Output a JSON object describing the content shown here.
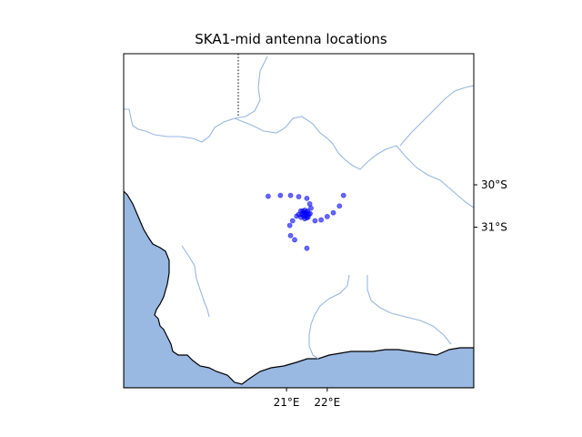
{
  "title": "SKA1-mid antenna locations",
  "map": {
    "x_ticks": [
      {
        "label": "21°E",
        "lon": 21
      },
      {
        "label": "22°E",
        "lon": 22
      }
    ],
    "y_ticks": [
      {
        "label": "30°S",
        "lat": -30
      },
      {
        "label": "31°S",
        "lat": -31
      }
    ],
    "extent": {
      "lon_min": 17.0,
      "lon_max": 25.6,
      "lat_min": -34.8,
      "lat_max": -26.9
    },
    "colors": {
      "ocean": "#99b8e2",
      "coastline": "#000000",
      "rivers": "#98b7e0",
      "border": "#000000",
      "markers": "#0000ff"
    }
  },
  "chart_data": {
    "type": "scatter",
    "title": "SKA1-mid antenna locations",
    "x_unit": "degrees longitude",
    "y_unit": "degrees latitude",
    "points": [
      {
        "lon": 20.55,
        "lat": -30.27
      },
      {
        "lon": 20.85,
        "lat": -30.25
      },
      {
        "lon": 21.1,
        "lat": -30.25
      },
      {
        "lon": 21.3,
        "lat": -30.28
      },
      {
        "lon": 21.5,
        "lat": -30.32
      },
      {
        "lon": 21.57,
        "lat": -30.45
      },
      {
        "lon": 21.6,
        "lat": -30.55
      },
      {
        "lon": 21.58,
        "lat": -30.68
      },
      {
        "lon": 21.53,
        "lat": -30.76
      },
      {
        "lon": 21.45,
        "lat": -30.8
      },
      {
        "lon": 21.36,
        "lat": -30.77
      },
      {
        "lon": 21.3,
        "lat": -30.7
      },
      {
        "lon": 21.35,
        "lat": -30.62
      },
      {
        "lon": 21.45,
        "lat": -30.6
      },
      {
        "lon": 21.5,
        "lat": -30.65
      },
      {
        "lon": 21.48,
        "lat": -30.72
      },
      {
        "lon": 21.42,
        "lat": -30.74
      },
      {
        "lon": 21.38,
        "lat": -30.7
      },
      {
        "lon": 21.42,
        "lat": -30.66
      },
      {
        "lon": 21.46,
        "lat": -30.68
      },
      {
        "lon": 21.52,
        "lat": -30.62
      },
      {
        "lon": 21.55,
        "lat": -30.7
      },
      {
        "lon": 21.5,
        "lat": -30.78
      },
      {
        "lon": 21.4,
        "lat": -30.62
      },
      {
        "lon": 21.25,
        "lat": -30.74
      },
      {
        "lon": 21.15,
        "lat": -30.85
      },
      {
        "lon": 21.08,
        "lat": -30.96
      },
      {
        "lon": 21.1,
        "lat": -31.2
      },
      {
        "lon": 21.2,
        "lat": -31.3
      },
      {
        "lon": 21.5,
        "lat": -31.5
      },
      {
        "lon": 21.7,
        "lat": -30.85
      },
      {
        "lon": 21.85,
        "lat": -30.83
      },
      {
        "lon": 22.0,
        "lat": -30.75
      },
      {
        "lon": 22.15,
        "lat": -30.66
      },
      {
        "lon": 22.3,
        "lat": -30.5
      },
      {
        "lon": 22.4,
        "lat": -30.25
      }
    ]
  }
}
